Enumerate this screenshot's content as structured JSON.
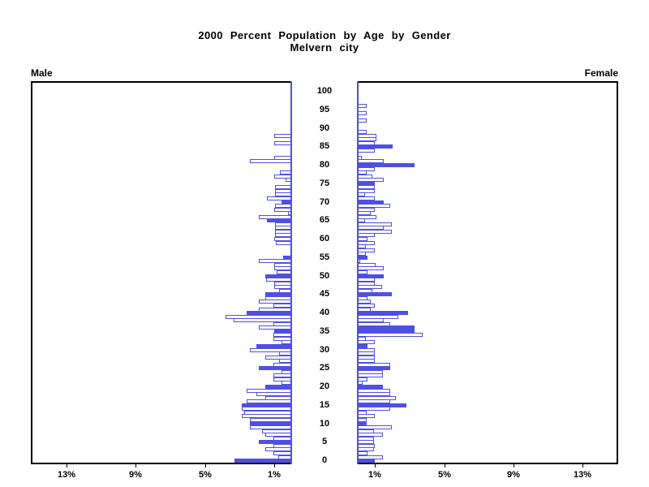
{
  "title": {
    "line1": "2000 Percent Population by Age by Gender",
    "line2": "Melvern city"
  },
  "panel_labels": {
    "left": "Male",
    "right": "Female"
  },
  "axes": {
    "age_tick_labels": [
      "0",
      "5",
      "10",
      "15",
      "20",
      "25",
      "30",
      "35",
      "40",
      "45",
      "50",
      "55",
      "60",
      "65",
      "70",
      "75",
      "80",
      "85",
      "90",
      "95",
      "100"
    ],
    "male_pct_tick_labels": [
      "13%",
      "9%",
      "5%",
      "1%"
    ],
    "female_pct_tick_labels": [
      "1%",
      "5%",
      "9%",
      "13%"
    ],
    "pct_tick_values": [
      1,
      5,
      9,
      13
    ]
  },
  "colors": {
    "bar_blue": "#4f4fe8",
    "frame_black": "#000000",
    "background": "#ffffff"
  },
  "chart_data": {
    "type": "bar",
    "subtype": "population-pyramid",
    "title": "2000 Percent Population by Age by Gender",
    "subtitle": "Melvern city",
    "unit": "percent of population",
    "age_range": [
      0,
      100
    ],
    "xlim_each_side": [
      0,
      15
    ],
    "series": [
      {
        "name": "Male",
        "values_by_age": [
          3.3,
          0.75,
          1.05,
          1.5,
          1.05,
          1.9,
          1.05,
          1.5,
          1.7,
          2.4,
          2.4,
          2.4,
          2.85,
          2.7,
          2.85,
          2.85,
          2.6,
          1.5,
          2.0,
          2.6,
          1.5,
          0.55,
          1.05,
          1.05,
          0.55,
          1.9,
          1.05,
          0.7,
          1.5,
          0.7,
          2.4,
          2.0,
          0.55,
          1.05,
          1.05,
          1.0,
          1.9,
          1.05,
          3.35,
          3.8,
          2.6,
          1.9,
          1.05,
          1.9,
          1.5,
          1.5,
          0.7,
          1.0,
          1.0,
          1.45,
          1.5,
          0.85,
          1.0,
          1.0,
          1.9,
          0.45,
          0,
          0,
          0,
          0.9,
          1.0,
          0.95,
          0.95,
          0.95,
          0.95,
          1.4,
          1.9,
          0.2,
          1.0,
          0.95,
          0.55,
          1.4,
          0.95,
          0.95,
          0.95,
          0,
          0.35,
          1.0,
          0.65,
          0,
          0,
          2.4,
          1.0,
          0,
          0,
          0,
          1.0,
          0,
          1.0,
          0,
          0,
          0,
          0,
          0,
          0,
          0,
          0,
          0,
          0,
          0,
          0
        ],
        "solid_highlight_ages": [
          0,
          5,
          10,
          15,
          20,
          25,
          31,
          35,
          40,
          45,
          50,
          55,
          65,
          70
        ]
      },
      {
        "name": "Female",
        "values_by_age": [
          1.0,
          1.45,
          0.55,
          0.95,
          1.0,
          0.95,
          0.95,
          1.45,
          0.95,
          1.95,
          0.5,
          0.5,
          1.0,
          0.5,
          1.9,
          2.8,
          1.9,
          2.2,
          1.9,
          1.9,
          1.45,
          0.3,
          0.55,
          1.45,
          1.45,
          1.9,
          1.9,
          0.97,
          0.97,
          0.97,
          0.97,
          0.55,
          1.0,
          0.45,
          3.75,
          3.3,
          3.3,
          1.9,
          1.5,
          2.35,
          2.9,
          0.75,
          1.0,
          0.75,
          0.55,
          1.95,
          0.85,
          1.4,
          0.97,
          0.97,
          1.5,
          0.55,
          1.5,
          1.05,
          0.15,
          0.55,
          0.45,
          0.97,
          0.45,
          0.97,
          0.55,
          0.97,
          1.95,
          1.5,
          1.95,
          0.4,
          1.1,
          0.75,
          1.0,
          1.9,
          1.5,
          1.0,
          0.4,
          1.0,
          1.0,
          1.0,
          1.5,
          0.85,
          0.5,
          1.0,
          3.3,
          1.5,
          0.25,
          0,
          1.0,
          2.0,
          1.0,
          1.1,
          1.1,
          0.5,
          0,
          0,
          0.5,
          0,
          0.5,
          0,
          0.5,
          0,
          0,
          0,
          0
        ],
        "solid_highlight_ages": [
          0,
          10,
          15,
          20,
          25,
          31,
          35,
          36,
          40,
          45,
          50,
          55,
          70,
          75,
          80,
          85
        ]
      }
    ]
  }
}
